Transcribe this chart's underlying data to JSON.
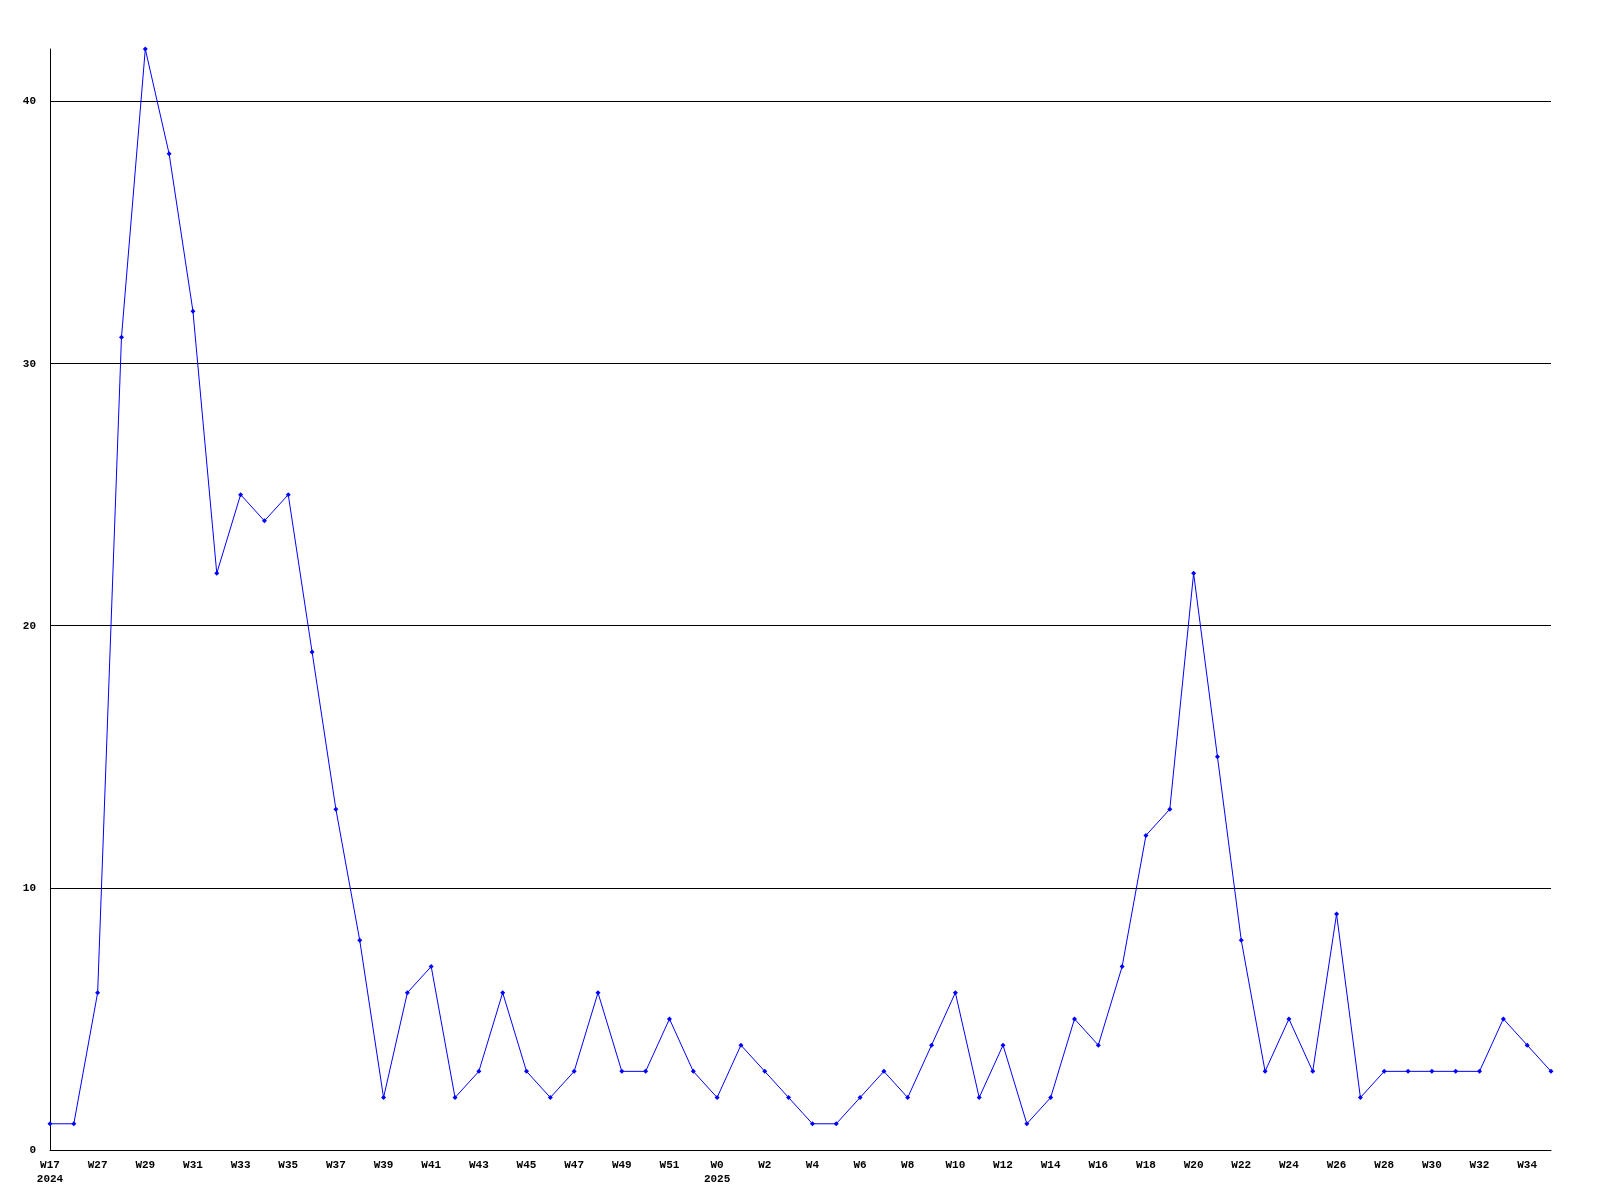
{
  "chart_data": {
    "type": "line",
    "categories": [
      "W17\n2024",
      null,
      "W27",
      null,
      "W29",
      null,
      "W31",
      null,
      "W33",
      null,
      "W35",
      null,
      "W37",
      null,
      "W39",
      null,
      "W41",
      null,
      "W43",
      null,
      "W45",
      null,
      "W47",
      null,
      "W49",
      null,
      "W51",
      null,
      "W0\n2025",
      null,
      "W2",
      null,
      "W4",
      null,
      "W6",
      null,
      "W8",
      null,
      "W10",
      null,
      "W12",
      null,
      "W14",
      null,
      "W16",
      null,
      "W18",
      null,
      "W20",
      null,
      "W22",
      null,
      "W24",
      null,
      "W26",
      null,
      "W28",
      null,
      "W30",
      null,
      "W32",
      null,
      "W34",
      null
    ],
    "series": [
      {
        "color": "#0000ff",
        "values": [
          1,
          1,
          6,
          31,
          42,
          38,
          32,
          22,
          25,
          24,
          25,
          19,
          13,
          8,
          2,
          6,
          7,
          2,
          3,
          6,
          3,
          2,
          3,
          6,
          3,
          3,
          5,
          3,
          2,
          4,
          3,
          2,
          1,
          1,
          2,
          3,
          2,
          4,
          6,
          2,
          4,
          1,
          2,
          5,
          4,
          7,
          12,
          13,
          22,
          15,
          8,
          3,
          5,
          3,
          9,
          2,
          3,
          3,
          3,
          3,
          3,
          5,
          4,
          3
        ]
      }
    ],
    "ylim": [
      0,
      42
    ],
    "yticks": [
      0,
      10,
      20,
      30,
      40
    ],
    "grid": "y",
    "marker": "diamond",
    "line_style": "solid"
  }
}
